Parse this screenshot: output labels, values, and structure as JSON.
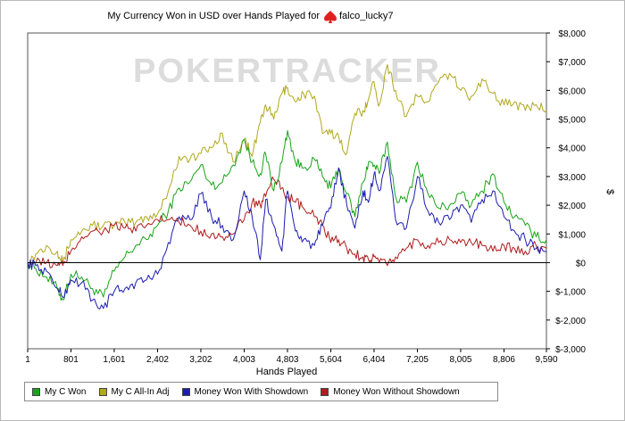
{
  "chart_data": {
    "type": "line",
    "title": "My Currency Won in USD over Hands Played for",
    "player_name": "falco_lucky7",
    "watermark": "POKERTRACKER",
    "xlabel": "Hands Played",
    "ylabel": "$",
    "xlim": [
      1,
      9590
    ],
    "ylim": [
      -3000,
      8000
    ],
    "x_ticks": [
      1,
      801,
      1601,
      2402,
      3202,
      4003,
      4803,
      5604,
      6404,
      7205,
      8005,
      8806,
      9590
    ],
    "x_tick_labels": [
      "1",
      "801",
      "1,601",
      "2,402",
      "3,202",
      "4,003",
      "4,803",
      "5,604",
      "6,404",
      "7,205",
      "8,005",
      "8,806",
      "9,590"
    ],
    "y_ticks": [
      -3000,
      -2000,
      -1000,
      0,
      1000,
      2000,
      3000,
      4000,
      5000,
      6000,
      7000,
      8000
    ],
    "y_tick_labels": [
      "$-3,000",
      "$-2,000",
      "$-1,000",
      "$0",
      "$1,000",
      "$2,000",
      "$3,000",
      "$4,000",
      "$5,000",
      "$6,000",
      "$7,000",
      "$8,000"
    ],
    "series": [
      {
        "name": "My C Won",
        "color": "#1aa31a",
        "x": [
          1,
          150,
          350,
          550,
          650,
          800,
          1000,
          1200,
          1400,
          1601,
          1800,
          2000,
          2200,
          2402,
          2600,
          2800,
          3000,
          3202,
          3400,
          3600,
          3800,
          4003,
          4150,
          4300,
          4400,
          4550,
          4700,
          4803,
          4950,
          5100,
          5300,
          5450,
          5604,
          5750,
          5900,
          6050,
          6200,
          6300,
          6404,
          6500,
          6650,
          6800,
          7000,
          7205,
          7400,
          7600,
          7800,
          8005,
          8200,
          8400,
          8600,
          8806,
          9000,
          9200,
          9400,
          9590
        ],
        "y": [
          0,
          -200,
          -500,
          -900,
          -1300,
          -400,
          -500,
          -900,
          -1200,
          -300,
          200,
          600,
          800,
          1300,
          1800,
          2600,
          2800,
          3400,
          2700,
          2800,
          3400,
          4300,
          3500,
          3100,
          3800,
          2500,
          3500,
          4600,
          3500,
          3300,
          3600,
          3000,
          2600,
          3300,
          2400,
          1600,
          2800,
          3500,
          3400,
          3100,
          4200,
          2300,
          2100,
          3500,
          2400,
          1900,
          2000,
          2400,
          2000,
          2500,
          3100,
          2100,
          1600,
          1300,
          900,
          800
        ]
      },
      {
        "name": "My C All-In Adj",
        "color": "#b0a81c",
        "x": [
          1,
          150,
          350,
          550,
          650,
          800,
          1000,
          1200,
          1400,
          1601,
          1800,
          2000,
          2200,
          2402,
          2600,
          2800,
          3000,
          3202,
          3400,
          3600,
          3800,
          4003,
          4150,
          4300,
          4400,
          4550,
          4700,
          4803,
          4950,
          5100,
          5300,
          5450,
          5604,
          5750,
          5900,
          6050,
          6200,
          6300,
          6404,
          6500,
          6650,
          6800,
          7000,
          7205,
          7400,
          7600,
          7800,
          8005,
          8200,
          8400,
          8600,
          8806,
          9000,
          9200,
          9400,
          9590
        ],
        "y": [
          0,
          300,
          600,
          400,
          0,
          800,
          1100,
          1300,
          1300,
          1300,
          1400,
          1400,
          1600,
          1700,
          2500,
          3700,
          3600,
          3800,
          4000,
          4500,
          3500,
          4300,
          3700,
          4900,
          5500,
          5000,
          5900,
          6100,
          5600,
          5900,
          5800,
          4500,
          4500,
          4400,
          3800,
          5200,
          5300,
          5700,
          6300,
          5500,
          6900,
          6000,
          5100,
          5800,
          5600,
          6300,
          6600,
          6000,
          5800,
          6400,
          5900,
          5500,
          5600,
          5300,
          5500,
          5300
        ]
      },
      {
        "name": "Money Won With Showdown",
        "color": "#1c1cb0",
        "x": [
          1,
          150,
          350,
          550,
          650,
          800,
          1000,
          1200,
          1400,
          1601,
          1800,
          2000,
          2200,
          2402,
          2600,
          2800,
          3000,
          3202,
          3400,
          3600,
          3800,
          4003,
          4150,
          4300,
          4400,
          4550,
          4700,
          4803,
          4950,
          5100,
          5300,
          5450,
          5604,
          5750,
          5900,
          6050,
          6200,
          6300,
          6404,
          6500,
          6650,
          6800,
          7000,
          7205,
          7400,
          7600,
          7800,
          8005,
          8200,
          8400,
          8600,
          8806,
          9000,
          9200,
          9400,
          9590
        ],
        "y": [
          0,
          -100,
          -300,
          -900,
          -1200,
          -600,
          -700,
          -1300,
          -1600,
          -1000,
          -900,
          -700,
          -600,
          -400,
          700,
          1600,
          1500,
          2400,
          1600,
          1300,
          800,
          2500,
          1600,
          100,
          2200,
          1300,
          400,
          2500,
          1100,
          800,
          600,
          1300,
          1900,
          3300,
          2000,
          1200,
          2500,
          2100,
          3100,
          2500,
          3700,
          1500,
          1200,
          3000,
          1800,
          1400,
          1500,
          2000,
          1400,
          2200,
          2500,
          1600,
          1100,
          800,
          500,
          400
        ]
      },
      {
        "name": "Money Won Without Showdown",
        "color": "#b01c1c",
        "x": [
          1,
          150,
          350,
          550,
          650,
          800,
          1000,
          1200,
          1400,
          1601,
          1800,
          2000,
          2200,
          2402,
          2600,
          2800,
          3000,
          3202,
          3400,
          3600,
          3800,
          4003,
          4150,
          4300,
          4400,
          4550,
          4700,
          4803,
          4950,
          5100,
          5300,
          5450,
          5604,
          5750,
          5900,
          6050,
          6200,
          6300,
          6404,
          6500,
          6650,
          6800,
          7000,
          7205,
          7400,
          7600,
          7800,
          8005,
          8200,
          8400,
          8600,
          8806,
          9000,
          9200,
          9400,
          9590
        ],
        "y": [
          0,
          0,
          0,
          -100,
          -100,
          400,
          900,
          1100,
          1100,
          1300,
          1200,
          1100,
          1300,
          1500,
          1500,
          1400,
          1300,
          1100,
          1000,
          900,
          1000,
          1500,
          2100,
          2000,
          2300,
          2900,
          2600,
          2300,
          2100,
          1900,
          1600,
          1300,
          700,
          800,
          500,
          300,
          200,
          100,
          200,
          0,
          -100,
          200,
          500,
          800,
          600,
          700,
          800,
          700,
          700,
          600,
          400,
          600,
          500,
          400,
          600,
          500
        ]
      }
    ]
  }
}
